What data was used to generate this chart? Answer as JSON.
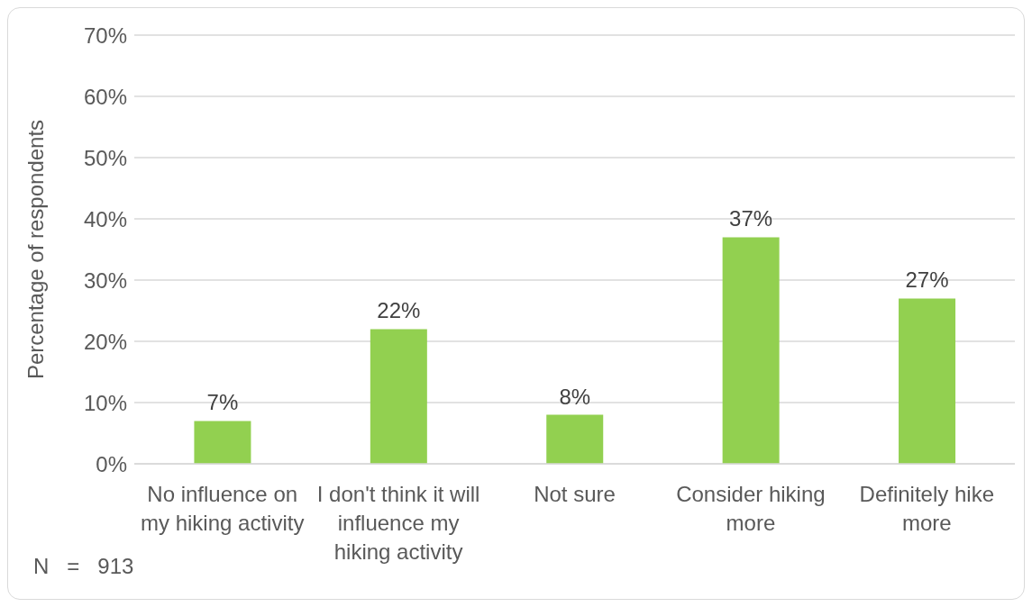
{
  "chart_data": {
    "type": "bar",
    "ylabel": "Percentage of respondents",
    "categories": [
      "No influence on my hiking activity",
      "I don't think it will influence my hiking activity",
      "Not sure",
      "Consider hiking more",
      "Definitely hike more"
    ],
    "values": [
      7,
      22,
      8,
      37,
      27
    ],
    "color": "#92d050",
    "ylim": [
      0,
      70
    ],
    "yticks": [
      {
        "value": 0,
        "label": "0%"
      },
      {
        "value": 10,
        "label": "10%"
      },
      {
        "value": 20,
        "label": "20%"
      },
      {
        "value": 30,
        "label": "30%"
      },
      {
        "value": 40,
        "label": "40%"
      },
      {
        "value": 50,
        "label": "50%"
      },
      {
        "value": 60,
        "label": "60%"
      },
      {
        "value": 70,
        "label": "70%"
      }
    ],
    "value_labels": [
      "7%",
      "22%",
      "8%",
      "37%",
      "27%"
    ],
    "grid": "y",
    "legend": false,
    "annotations": [
      "N   =   913"
    ]
  }
}
